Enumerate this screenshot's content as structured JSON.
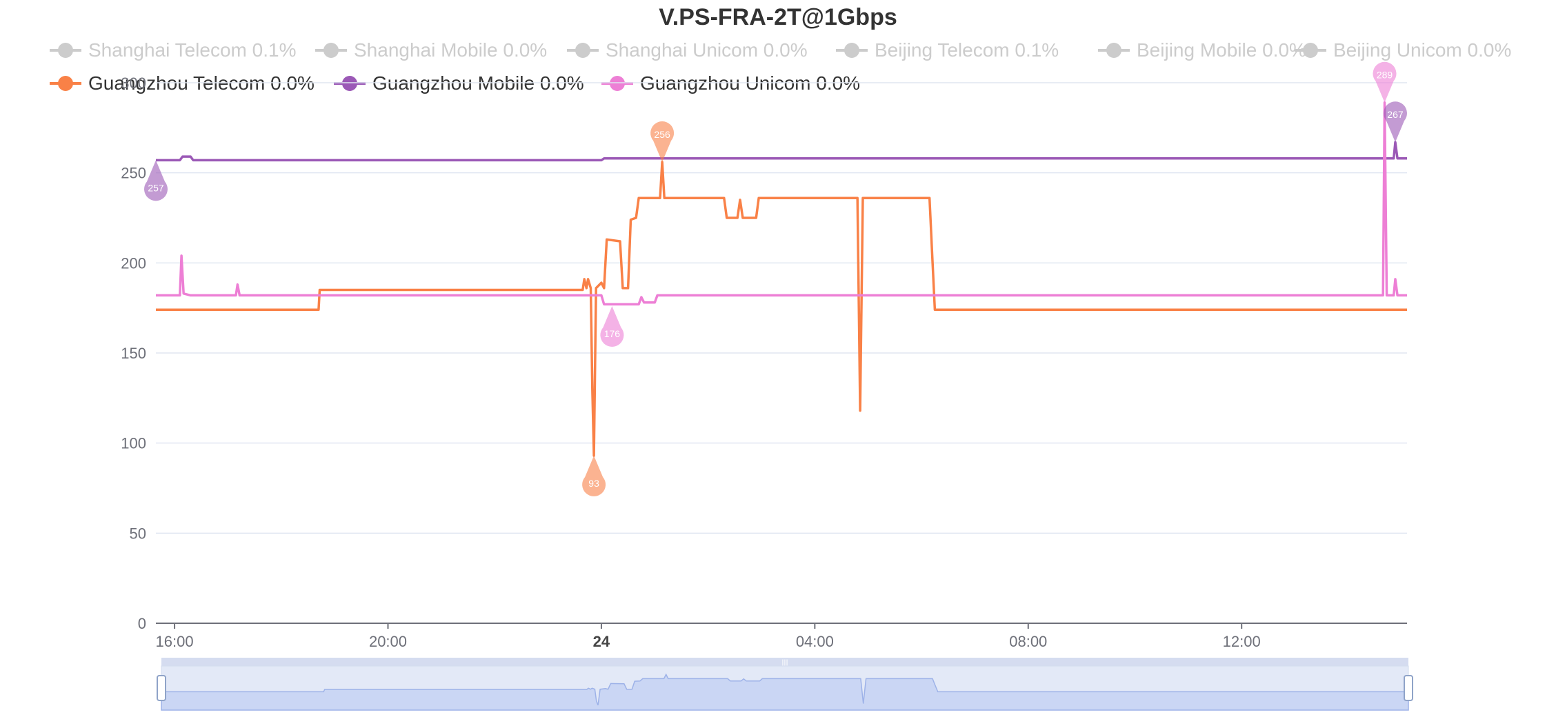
{
  "chart_data": {
    "type": "line",
    "title": "V.PS-FRA-2T@1Gbps",
    "xlabel": "",
    "ylabel": "",
    "ylim": [
      0,
      300
    ],
    "yticks": [
      "0",
      "50",
      "100",
      "150",
      "200",
      "250",
      "300"
    ],
    "xticks": [
      "16:00",
      "20:00",
      "24",
      "04:00",
      "08:00",
      "12:00"
    ],
    "legend": [
      {
        "label": "Shanghai Telecom 0.1%",
        "enabled": false,
        "color": "#cccccc"
      },
      {
        "label": "Shanghai Mobile 0.0%",
        "enabled": false,
        "color": "#cccccc"
      },
      {
        "label": "Shanghai Unicom 0.0%",
        "enabled": false,
        "color": "#cccccc"
      },
      {
        "label": "Beijing Telecom 0.1%",
        "enabled": false,
        "color": "#cccccc"
      },
      {
        "label": "Beijing Mobile 0.0%",
        "enabled": false,
        "color": "#cccccc"
      },
      {
        "label": "Beijing Unicom 0.0%",
        "enabled": false,
        "color": "#cccccc"
      },
      {
        "label": "Guangzhou Telecom 0.0%",
        "enabled": true,
        "color": "#f98147"
      },
      {
        "label": "Guangzhou Mobile 0.0%",
        "enabled": true,
        "color": "#9b59b6"
      },
      {
        "label": "Guangzhou Unicom 0.0%",
        "enabled": true,
        "color": "#ed7fd5"
      }
    ],
    "series": [
      {
        "name": "Guangzhou Telecom 0.0%",
        "color": "#f98147",
        "points": [
          [
            15.65,
            174
          ],
          [
            18.7,
            174
          ],
          [
            18.72,
            185
          ],
          [
            23.65,
            185
          ],
          [
            23.68,
            191
          ],
          [
            23.72,
            186
          ],
          [
            23.75,
            191
          ],
          [
            23.8,
            186
          ],
          [
            23.83,
            130
          ],
          [
            23.86,
            93
          ],
          [
            23.9,
            186
          ],
          [
            24.0,
            189
          ],
          [
            24.05,
            186
          ],
          [
            24.1,
            213
          ],
          [
            24.35,
            212
          ],
          [
            24.4,
            186
          ],
          [
            24.5,
            186
          ],
          [
            24.55,
            224
          ],
          [
            24.65,
            225
          ],
          [
            24.7,
            236
          ],
          [
            25.1,
            236
          ],
          [
            25.14,
            256
          ],
          [
            25.18,
            236
          ],
          [
            26.0,
            236
          ],
          [
            26.3,
            236
          ],
          [
            26.35,
            225
          ],
          [
            26.55,
            225
          ],
          [
            26.6,
            235
          ],
          [
            26.65,
            225
          ],
          [
            26.9,
            225
          ],
          [
            26.95,
            236
          ],
          [
            28.8,
            236
          ],
          [
            28.85,
            118
          ],
          [
            28.9,
            236
          ],
          [
            30.15,
            236
          ],
          [
            30.2,
            205
          ],
          [
            30.25,
            174
          ],
          [
            39.1,
            174
          ]
        ]
      },
      {
        "name": "Guangzhou Mobile 0.0%",
        "color": "#9b59b6",
        "points": [
          [
            15.65,
            257
          ],
          [
            16.1,
            257
          ],
          [
            16.15,
            259
          ],
          [
            16.3,
            259
          ],
          [
            16.35,
            257
          ],
          [
            24.0,
            257
          ],
          [
            24.05,
            258
          ],
          [
            38.85,
            258
          ],
          [
            38.88,
            267
          ],
          [
            38.92,
            258
          ],
          [
            39.1,
            258
          ]
        ]
      },
      {
        "name": "Guangzhou Unicom 0.0%",
        "color": "#ed7fd5",
        "points": [
          [
            15.65,
            182
          ],
          [
            16.1,
            182
          ],
          [
            16.13,
            204
          ],
          [
            16.17,
            183
          ],
          [
            16.3,
            182
          ],
          [
            17.15,
            182
          ],
          [
            17.18,
            188
          ],
          [
            17.22,
            182
          ],
          [
            24.0,
            182
          ],
          [
            24.05,
            177
          ],
          [
            24.7,
            177
          ],
          [
            24.75,
            181
          ],
          [
            24.8,
            178
          ],
          [
            25.0,
            178
          ],
          [
            25.05,
            182
          ],
          [
            38.65,
            182
          ],
          [
            38.68,
            289
          ],
          [
            38.72,
            182
          ],
          [
            38.85,
            182
          ],
          [
            38.88,
            191
          ],
          [
            38.92,
            182
          ],
          [
            39.1,
            182
          ]
        ]
      }
    ],
    "markers": [
      {
        "series": "Guangzhou Mobile 0.0%",
        "label": "257",
        "x": 15.65,
        "y": 257,
        "color": "#9b59b6",
        "position": "bottom"
      },
      {
        "series": "Guangzhou Mobile 0.0%",
        "label": "267",
        "x": 38.88,
        "y": 267,
        "color": "#9b59b6",
        "position": "top"
      },
      {
        "series": "Guangzhou Telecom 0.0%",
        "label": "256",
        "x": 25.14,
        "y": 256,
        "color": "#f98147",
        "position": "top"
      },
      {
        "series": "Guangzhou Telecom 0.0%",
        "label": "93",
        "x": 23.86,
        "y": 93,
        "color": "#f98147",
        "position": "bottom"
      },
      {
        "series": "Guangzhou Unicom 0.0%",
        "label": "176",
        "x": 24.2,
        "y": 176,
        "color": "#ed7fd5",
        "position": "bottom"
      },
      {
        "series": "Guangzhou Unicom 0.0%",
        "label": "289",
        "x": 38.68,
        "y": 289,
        "color": "#ed7fd5",
        "position": "top"
      }
    ],
    "x_range_hours": [
      15.65,
      39.1
    ],
    "grid": true,
    "legend_position": "top",
    "datazoom": {
      "start_percent": 0,
      "end_percent": 100
    }
  }
}
